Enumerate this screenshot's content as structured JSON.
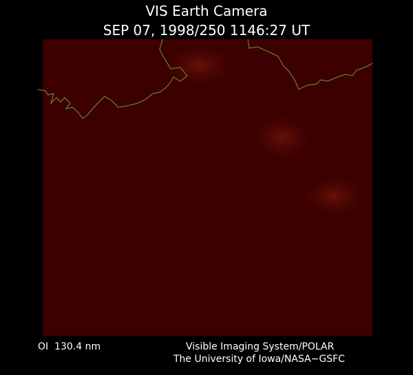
{
  "header": {
    "title": "VIS Earth Camera",
    "timestamp": "SEP 07, 1998/250 1146:27 UT"
  },
  "footer": {
    "filter": "OI  130.4 nm",
    "instrument": "Visible Imaging System/POLAR",
    "institution": "The University of Iowa/NASA−GSFC"
  }
}
